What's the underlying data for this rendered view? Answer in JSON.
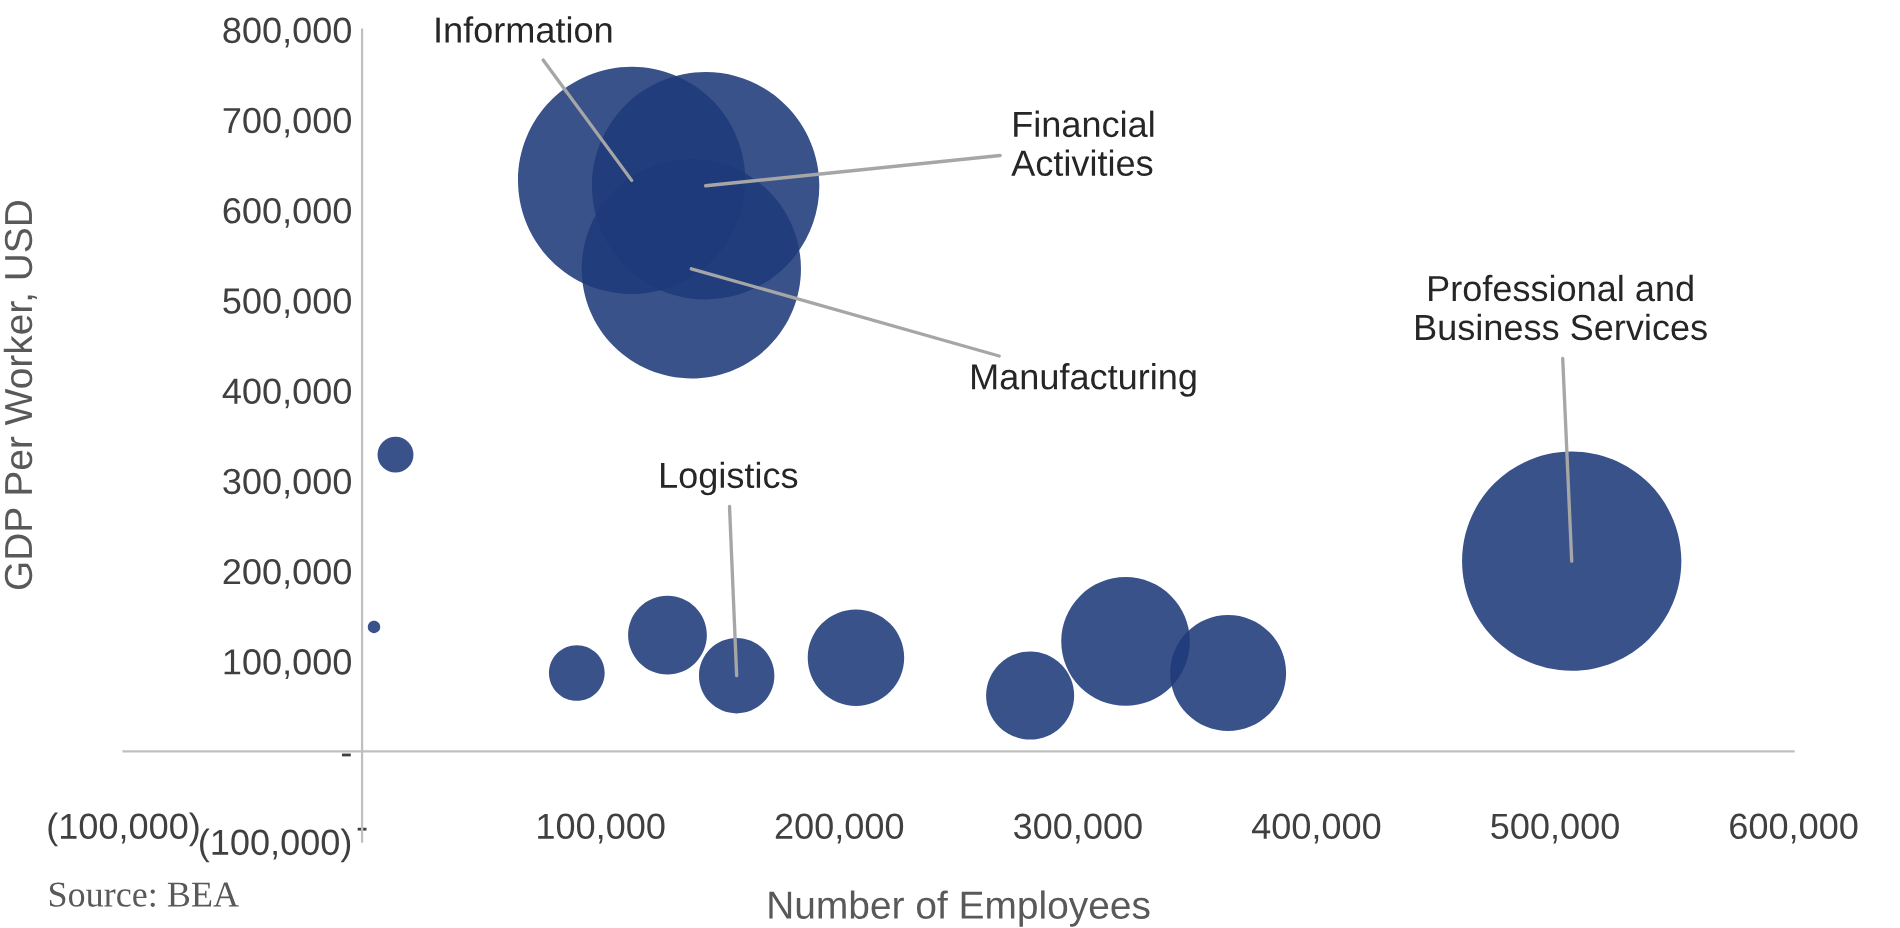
{
  "chart_data": {
    "type": "bubble",
    "xlabel": "Number of Employees",
    "ylabel": "GDP Per Worker, USD",
    "xlim": [
      -100000,
      600000
    ],
    "ylim": [
      -100000,
      800000
    ],
    "xticks": [
      {
        "value": -100000,
        "label": "(100,000)"
      },
      {
        "value": 0,
        "label": "-"
      },
      {
        "value": 100000,
        "label": "100,000"
      },
      {
        "value": 200000,
        "label": "200,000"
      },
      {
        "value": 300000,
        "label": "300,000"
      },
      {
        "value": 400000,
        "label": "400,000"
      },
      {
        "value": 500000,
        "label": "500,000"
      },
      {
        "value": 600000,
        "label": "600,000"
      }
    ],
    "yticks": [
      {
        "value": -100000,
        "label": "(100,000)"
      },
      {
        "value": 0,
        "label": "-"
      },
      {
        "value": 100000,
        "label": "100,000"
      },
      {
        "value": 200000,
        "label": "200,000"
      },
      {
        "value": 300000,
        "label": "300,000"
      },
      {
        "value": 400000,
        "label": "400,000"
      },
      {
        "value": 500000,
        "label": "500,000"
      },
      {
        "value": 600000,
        "label": "600,000"
      },
      {
        "value": 700000,
        "label": "700,000"
      },
      {
        "value": 800000,
        "label": "800,000"
      }
    ],
    "grid": false,
    "legend": false,
    "series": [
      {
        "color": "#1f3a7a",
        "x": [
          113000,
          144000,
          138000,
          14000,
          5000,
          90000,
          128000,
          157000,
          207000,
          280000,
          320000,
          363000,
          507000
        ],
        "values": [
          633000,
          627000,
          535000,
          329000,
          138000,
          87000,
          129000,
          84000,
          104000,
          62000,
          122000,
          87000,
          211000
        ],
        "sizes": [
          1,
          1,
          0.93,
          0.025,
          0.003,
          0.06,
          0.12,
          0.11,
          0.18,
          0.15,
          0.32,
          0.26,
          0.93
        ]
      }
    ],
    "annotations": [
      {
        "text": "Information",
        "x": 113000,
        "y": 633000
      },
      {
        "text": "Financial\nActivities",
        "x": 144000,
        "y": 627000
      },
      {
        "text": "Manufacturing",
        "x": 138000,
        "y": 535000
      },
      {
        "text": "Logistics",
        "x": 157000,
        "y": 84000
      },
      {
        "text": "Professional and\nBusiness Services",
        "x": 507000,
        "y": 211000
      },
      "Source: BEA"
    ]
  }
}
